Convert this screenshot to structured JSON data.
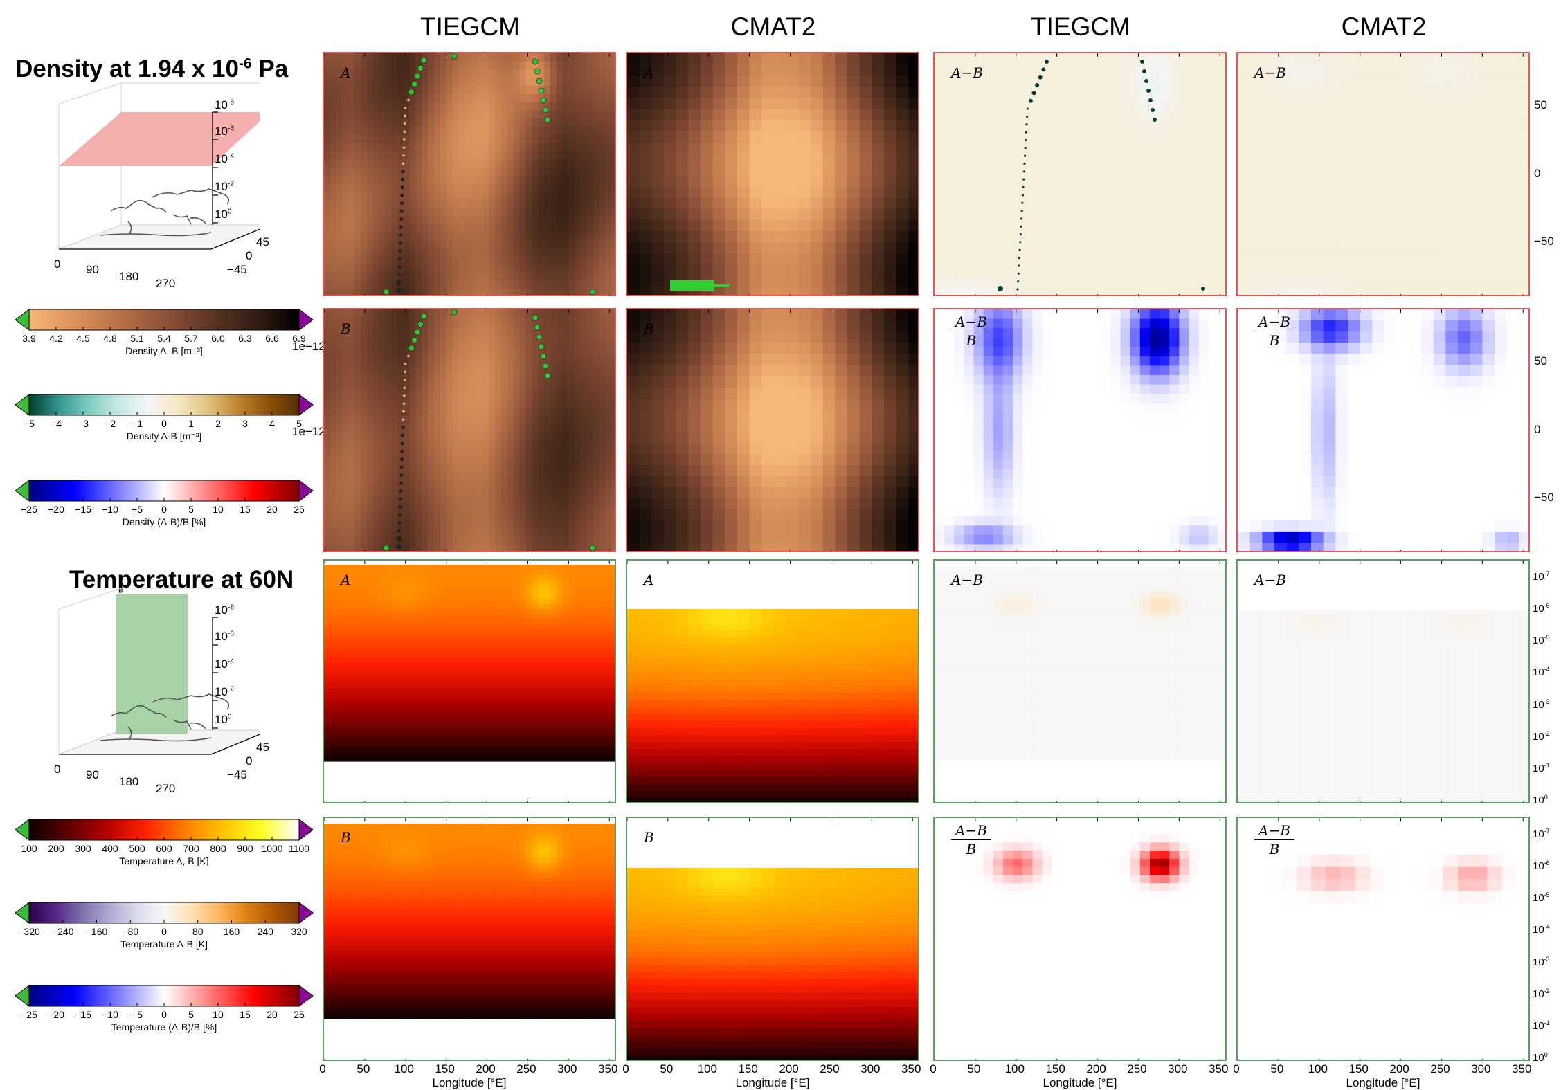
{
  "column_titles": [
    "TIEGCM",
    "CMAT2",
    "TIEGCM",
    "CMAT2"
  ],
  "density_section": {
    "title_pre": "Density at 1.94 x 10",
    "title_exp": "-6",
    "title_post": " Pa",
    "globe_z_ticks": [
      "10",
      "10",
      "10",
      "10",
      "10"
    ],
    "globe_z_exps": [
      "-8",
      "-6",
      "-4",
      "-2",
      "0"
    ],
    "globe_lon_ticks": [
      "0",
      "90",
      "180",
      "270"
    ],
    "globe_lat_ticks": [
      "45",
      "0",
      "−45"
    ]
  },
  "temperature_section": {
    "title": "Temperature at 60N",
    "globe_z_ticks": [
      "10",
      "10",
      "10",
      "10",
      "10"
    ],
    "globe_z_exps": [
      "-8",
      "-6",
      "-4",
      "-2",
      "0"
    ],
    "globe_lon_ticks": [
      "0",
      "90",
      "180",
      "270"
    ],
    "globe_lat_ticks": [
      "45",
      "0",
      "−45"
    ]
  },
  "colorbars": [
    {
      "ticks": [
        "3.9",
        "4.2",
        "4.5",
        "4.8",
        "5.1",
        "5.4",
        "5.7",
        "6.0",
        "6.3",
        "6.6",
        "6.9"
      ],
      "label": "Density A, B [m⁻³]",
      "exp": "1e−12",
      "colors": [
        "#f7b877",
        "#e0975f",
        "#c47b4e",
        "#a06040",
        "#7a4530",
        "#523020",
        "#2e1b12",
        "#000000"
      ]
    },
    {
      "ticks": [
        "−5",
        "−4",
        "−3",
        "−2",
        "−1",
        "0",
        "1",
        "2",
        "3",
        "4",
        "5"
      ],
      "label": "Density A-B [m⁻³]",
      "exp": "1e−12",
      "colors": [
        "#003c30",
        "#35978f",
        "#80cdc1",
        "#c7eae5",
        "#f5f5f5",
        "#f6e8c3",
        "#dfc27d",
        "#bf812d",
        "#8c510a",
        "#543005"
      ]
    },
    {
      "ticks": [
        "−25",
        "−20",
        "−15",
        "−10",
        "−5",
        "0",
        "5",
        "10",
        "15",
        "20",
        "25"
      ],
      "label": "Density (A-B)/B [%]",
      "exp": "",
      "colors": [
        "#00007f",
        "#0000ff",
        "#7f7fff",
        "#ffffff",
        "#ff7f7f",
        "#ff0000",
        "#7f0000"
      ]
    },
    {
      "ticks": [
        "100",
        "200",
        "300",
        "400",
        "500",
        "600",
        "700",
        "800",
        "900",
        "1000",
        "1100"
      ],
      "label": "Temperature A, B [K]",
      "exp": "",
      "colors": [
        "#0b0000",
        "#5c0000",
        "#b30000",
        "#ff2000",
        "#ff7a00",
        "#ffc000",
        "#ffff20",
        "#ffffff"
      ]
    },
    {
      "ticks": [
        "−320",
        "−240",
        "−160",
        "−80",
        "0",
        "80",
        "160",
        "240",
        "320"
      ],
      "label": "Temperature A-B [K]",
      "exp": "",
      "colors": [
        "#2d004b",
        "#542788",
        "#8073ac",
        "#b2abd2",
        "#d8daeb",
        "#f7f7f7",
        "#fee0b6",
        "#fdb863",
        "#e08214",
        "#b35806",
        "#7f3b08"
      ]
    },
    {
      "ticks": [
        "−25",
        "−20",
        "−15",
        "−10",
        "−5",
        "0",
        "5",
        "10",
        "15",
        "20",
        "25"
      ],
      "label": "Temperature (A-B)/B [%]",
      "exp": "",
      "colors": [
        "#00007f",
        "#0000ff",
        "#7f7fff",
        "#ffffff",
        "#ff7f7f",
        "#ff0000",
        "#7f0000"
      ]
    }
  ],
  "panel_labels": {
    "r1": [
      "A",
      "A",
      "A−B",
      "A−B"
    ],
    "r2": [
      "B",
      "B",
      "frac",
      "frac"
    ],
    "r3": [
      "A",
      "A",
      "A−B",
      "A−B"
    ],
    "r4": [
      "B",
      "B",
      "frac",
      "frac"
    ],
    "frac_num": "A−B",
    "frac_den": "B"
  },
  "chart_data": {
    "type": "heatmap",
    "x": {
      "label": "Longitude [°E]",
      "ticks": [
        0,
        50,
        100,
        150,
        200,
        250,
        300,
        350
      ],
      "lim": [
        0,
        360
      ]
    },
    "lat_ticks": [
      50,
      0,
      -50
    ],
    "lat_tick_labels": [
      "50",
      "0",
      "−50"
    ],
    "pressure_ticks": [
      "10",
      "10",
      "10",
      "10",
      "10",
      "10",
      "10",
      "10"
    ],
    "pressure_exps": [
      "-7",
      "-6",
      "-5",
      "-4",
      "-3",
      "-2",
      "-1",
      "0"
    ],
    "colormaps": {
      "copper_r": [
        "#f7b877",
        "#e0975f",
        "#c47b4e",
        "#a06040",
        "#7a4530",
        "#523020",
        "#2e1b12",
        "#000000"
      ],
      "brbg": [
        "#003c30",
        "#35978f",
        "#80cdc1",
        "#c7eae5",
        "#f5f5f5",
        "#f6e8c3",
        "#dfc27d",
        "#bf812d",
        "#8c510a",
        "#543005"
      ],
      "seismic": [
        "#00007f",
        "#0000ff",
        "#7f7fff",
        "#ffffff",
        "#ff7f7f",
        "#ff0000",
        "#7f0000"
      ],
      "hot": [
        "#0b0000",
        "#5c0000",
        "#b30000",
        "#ff2000",
        "#ff7a00",
        "#ffc000",
        "#ffff20",
        "#ffffff"
      ],
      "puor": [
        "#2d004b",
        "#542788",
        "#8073ac",
        "#b2abd2",
        "#d8daeb",
        "#f7f7f7",
        "#fee0b6",
        "#fdb863",
        "#e08214",
        "#b35806",
        "#7f3b08"
      ]
    },
    "density_range": [
      3.9,
      6.9
    ],
    "temperature_range": [
      100,
      1100
    ],
    "tiegcm_density_lon_profile": [
      5.4,
      5.2,
      5.6,
      5.9,
      5.3,
      4.8,
      4.7,
      5.2,
      5.8,
      6.0,
      5.7,
      5.4
    ],
    "cmat2_density_lon_profile": [
      6.4,
      6.0,
      5.6,
      5.2,
      4.8,
      4.3,
      4.3,
      4.4,
      4.9,
      5.4,
      6.0,
      6.6
    ],
    "tiegcm_temperature_top": 700,
    "cmat2_temperature_top": 820
  }
}
